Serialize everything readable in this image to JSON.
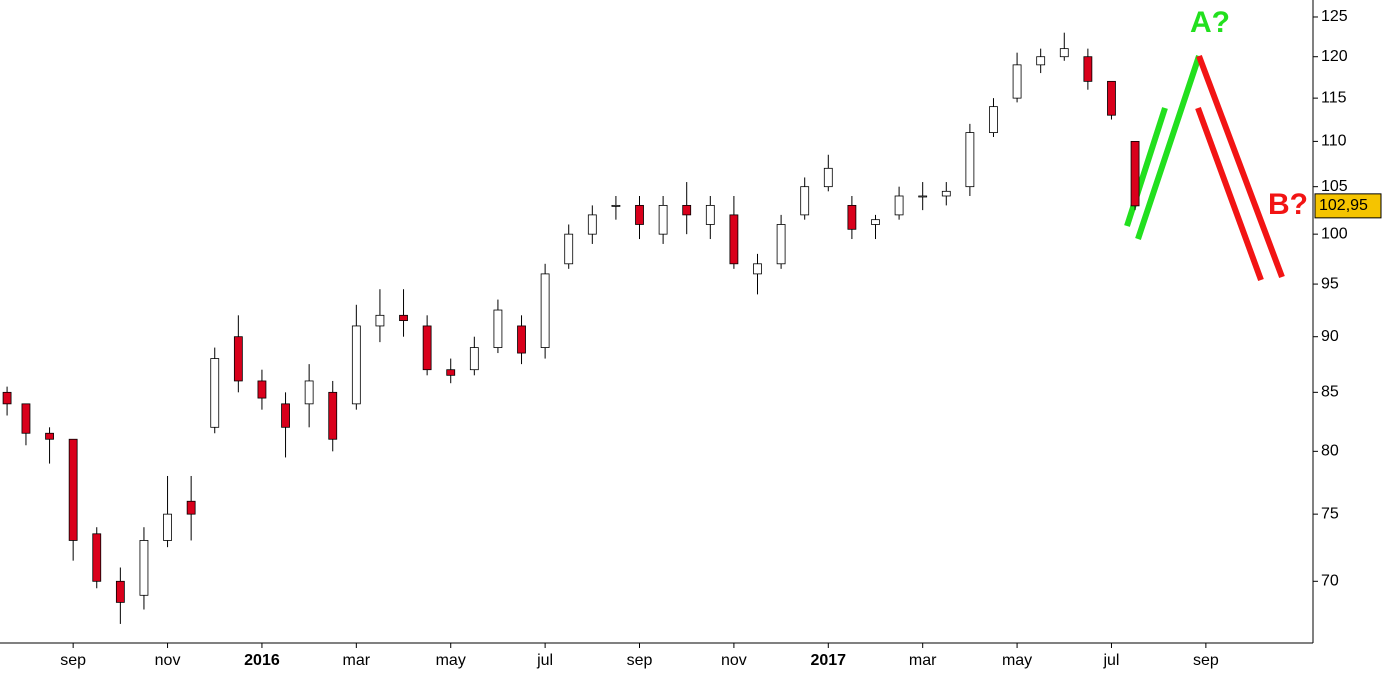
{
  "chart_data": {
    "type": "candlestick",
    "log_scale": true,
    "up_color": "#ffffff",
    "down_color": "#d9001b",
    "wick_color": "#000000",
    "x": [
      -1.4,
      -1.0,
      -0.5,
      0,
      0.5,
      1.0,
      1.5,
      2.0,
      2.5,
      3.0,
      3.5,
      4.0,
      4.5,
      5.0,
      5.5,
      6.0,
      6.5,
      7.0,
      7.5,
      8.0,
      8.5,
      9.0,
      9.5,
      10.0,
      10.5,
      11.0,
      11.5,
      12.0,
      12.5,
      13.0,
      13.5,
      14.0,
      14.5,
      15.0,
      15.5,
      16.0,
      16.5,
      17.0,
      17.5,
      18.0,
      18.5,
      19.0,
      19.5,
      20.0,
      20.5,
      21.0,
      21.5,
      22.0,
      22.5
    ],
    "open": [
      85,
      84,
      81.5,
      81,
      73.5,
      70,
      69,
      73,
      76,
      82,
      90,
      86,
      84,
      84,
      85,
      84,
      91,
      92,
      91,
      87,
      87,
      89,
      91,
      89,
      97,
      100,
      103,
      103,
      100,
      103,
      101,
      102,
      96,
      97,
      102,
      105,
      103,
      101,
      102,
      104,
      104,
      105,
      111,
      115,
      119,
      120,
      120,
      117,
      110
    ],
    "high": [
      85.5,
      84,
      82,
      81,
      74,
      71,
      74,
      78,
      78,
      89,
      92,
      87,
      85,
      87.5,
      86,
      93,
      94.5,
      94.5,
      92,
      88,
      90,
      93.5,
      92,
      97,
      101,
      103,
      104,
      104,
      104,
      105.5,
      104,
      104,
      98,
      102,
      106,
      108.5,
      104,
      102,
      105,
      105.5,
      105.5,
      112,
      115,
      120.5,
      121,
      123,
      121,
      117,
      110
    ],
    "low": [
      83,
      80.5,
      79,
      71.5,
      69.5,
      67,
      68,
      72.5,
      73,
      81.5,
      85,
      83.5,
      79.5,
      82,
      80,
      83.5,
      89.5,
      90,
      86.5,
      85.8,
      86.5,
      88.5,
      87.5,
      88,
      96.5,
      99,
      101.5,
      99.5,
      99,
      100,
      99.5,
      96.5,
      94,
      96.5,
      101.5,
      104.5,
      99.5,
      99.5,
      101.5,
      102.5,
      103,
      104,
      110.5,
      114.5,
      118,
      119.5,
      116,
      112.5,
      102.5
    ],
    "close": [
      84,
      81.5,
      81,
      73,
      70,
      68.5,
      73,
      75,
      75,
      88,
      86,
      84.5,
      82,
      86,
      81,
      91,
      92,
      91.5,
      87,
      86.5,
      89,
      92.5,
      88.5,
      96,
      100,
      102,
      103,
      101,
      103,
      102,
      103,
      97,
      97,
      101,
      105,
      107,
      100.5,
      101.5,
      104,
      104,
      104.5,
      111,
      114,
      119,
      120,
      121,
      117,
      113,
      102.95
    ],
    "xlim": [
      -1.55,
      26.27
    ],
    "xticks": [
      {
        "value": 0,
        "label": "sep"
      },
      {
        "value": 2,
        "label": "nov"
      },
      {
        "value": 4,
        "label": "2016"
      },
      {
        "value": 6,
        "label": "mar"
      },
      {
        "value": 8,
        "label": "may"
      },
      {
        "value": 10,
        "label": "jul"
      },
      {
        "value": 12,
        "label": "sep"
      },
      {
        "value": 14,
        "label": "nov"
      },
      {
        "value": 16,
        "label": "2017"
      },
      {
        "value": 18,
        "label": "mar"
      },
      {
        "value": 20,
        "label": "may"
      },
      {
        "value": 22,
        "label": "jul"
      },
      {
        "value": 24,
        "label": "sep"
      }
    ],
    "ylim": [
      65.7,
      127.2
    ],
    "yticks": [
      70,
      75,
      80,
      85,
      90,
      95,
      100,
      105,
      110,
      115,
      120,
      125
    ],
    "last_price": {
      "value": 102.95,
      "label": "102,95"
    },
    "annotations": [
      "A?",
      "B?"
    ]
  }
}
